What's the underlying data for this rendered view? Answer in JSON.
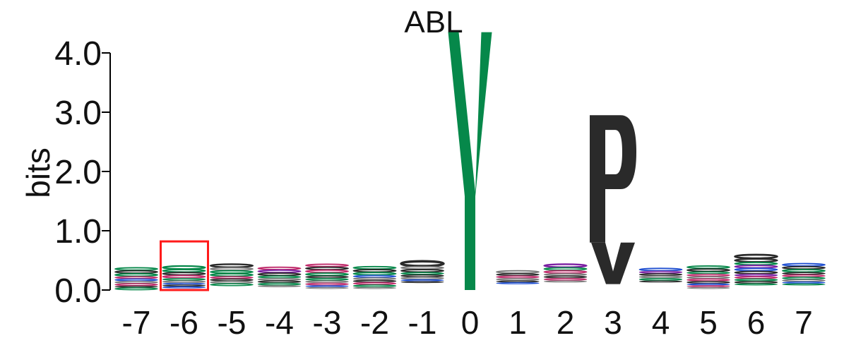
{
  "chart_data": {
    "type": "sequence-logo",
    "title": "ABL",
    "ylabel": "bits",
    "ylim": [
      0,
      4.35
    ],
    "yticks": [
      "0.0",
      "1.0",
      "2.0",
      "3.0",
      "4.0"
    ],
    "xticks": [
      "-7",
      "-6",
      "-5",
      "-4",
      "-3",
      "-2",
      "-1",
      "0",
      "1",
      "2",
      "3",
      "4",
      "5",
      "6",
      "7"
    ],
    "highlight": {
      "position": "-6",
      "ymax": 0.82,
      "color": "#ff1a1a"
    },
    "colors": {
      "green": "#06884a",
      "dark": "#2a2a2a",
      "pink": "#c02b6b",
      "blue": "#1f4fd1",
      "purple": "#7b1fa2",
      "gray": "#7a7a7a"
    },
    "positions": [
      {
        "pos": "-7",
        "total": 0.38,
        "letters": [
          {
            "c": "green",
            "h": 0.05
          },
          {
            "c": "dark",
            "h": 0.05
          },
          {
            "c": "green",
            "h": 0.05
          },
          {
            "c": "pink",
            "h": 0.04
          },
          {
            "c": "blue",
            "h": 0.04
          },
          {
            "c": "gray",
            "h": 0.04
          },
          {
            "c": "pink",
            "h": 0.04
          },
          {
            "c": "dark",
            "h": 0.03
          },
          {
            "c": "green",
            "h": 0.04
          }
        ]
      },
      {
        "pos": "-6",
        "total": 0.41,
        "letters": [
          {
            "c": "green",
            "h": 0.06
          },
          {
            "c": "green",
            "h": 0.05
          },
          {
            "c": "dark",
            "h": 0.05
          },
          {
            "c": "pink",
            "h": 0.05
          },
          {
            "c": "green",
            "h": 0.04
          },
          {
            "c": "gray",
            "h": 0.04
          },
          {
            "c": "blue",
            "h": 0.03
          },
          {
            "c": "dark",
            "h": 0.03
          },
          {
            "c": "blue",
            "h": 0.03
          }
        ]
      },
      {
        "pos": "-5",
        "total": 0.44,
        "letters": [
          {
            "c": "dark",
            "h": 0.06
          },
          {
            "c": "gray",
            "h": 0.05
          },
          {
            "c": "green",
            "h": 0.05
          },
          {
            "c": "green",
            "h": 0.05
          },
          {
            "c": "pink",
            "h": 0.04
          },
          {
            "c": "dark",
            "h": 0.04
          },
          {
            "c": "gray",
            "h": 0.04
          },
          {
            "c": "green",
            "h": 0.04
          }
        ]
      },
      {
        "pos": "-4",
        "total": 0.39,
        "letters": [
          {
            "c": "pink",
            "h": 0.05
          },
          {
            "c": "purple",
            "h": 0.05
          },
          {
            "c": "dark",
            "h": 0.05
          },
          {
            "c": "green",
            "h": 0.04
          },
          {
            "c": "gray",
            "h": 0.04
          },
          {
            "c": "dark",
            "h": 0.04
          },
          {
            "c": "green",
            "h": 0.04
          },
          {
            "c": "gray",
            "h": 0.03
          }
        ]
      },
      {
        "pos": "-3",
        "total": 0.44,
        "letters": [
          {
            "c": "pink",
            "h": 0.05
          },
          {
            "c": "dark",
            "h": 0.05
          },
          {
            "c": "pink",
            "h": 0.05
          },
          {
            "c": "green",
            "h": 0.05
          },
          {
            "c": "dark",
            "h": 0.04
          },
          {
            "c": "green",
            "h": 0.04
          },
          {
            "c": "gray",
            "h": 0.04
          },
          {
            "c": "pink",
            "h": 0.04
          },
          {
            "c": "blue",
            "h": 0.03
          },
          {
            "c": "gray",
            "h": 0.03
          }
        ]
      },
      {
        "pos": "-2",
        "total": 0.4,
        "letters": [
          {
            "c": "green",
            "h": 0.05
          },
          {
            "c": "dark",
            "h": 0.05
          },
          {
            "c": "green",
            "h": 0.05
          },
          {
            "c": "blue",
            "h": 0.04
          },
          {
            "c": "gray",
            "h": 0.04
          },
          {
            "c": "dark",
            "h": 0.04
          },
          {
            "c": "pink",
            "h": 0.04
          },
          {
            "c": "green",
            "h": 0.04
          },
          {
            "c": "gray",
            "h": 0.03
          }
        ]
      },
      {
        "pos": "-1",
        "total": 0.49,
        "letters": [
          {
            "c": "dark",
            "h": 0.09
          },
          {
            "c": "gray",
            "h": 0.05
          },
          {
            "c": "dark",
            "h": 0.05
          },
          {
            "c": "green",
            "h": 0.04
          },
          {
            "c": "dark",
            "h": 0.04
          },
          {
            "c": "gray",
            "h": 0.04
          },
          {
            "c": "blue",
            "h": 0.03
          },
          {
            "c": "dark",
            "h": 0.03
          }
        ]
      },
      {
        "pos": "0",
        "total": 4.35,
        "letters": [
          {
            "c": "green",
            "h": 4.35,
            "glyph": "Y"
          }
        ]
      },
      {
        "pos": "1",
        "total": 0.33,
        "letters": [
          {
            "c": "gray",
            "h": 0.05
          },
          {
            "c": "dark",
            "h": 0.04
          },
          {
            "c": "pink",
            "h": 0.04
          },
          {
            "c": "gray",
            "h": 0.04
          },
          {
            "c": "dark",
            "h": 0.03
          },
          {
            "c": "blue",
            "h": 0.03
          }
        ]
      },
      {
        "pos": "2",
        "total": 0.44,
        "letters": [
          {
            "c": "purple",
            "h": 0.06
          },
          {
            "c": "green",
            "h": 0.05
          },
          {
            "c": "pink",
            "h": 0.05
          },
          {
            "c": "gray",
            "h": 0.04
          },
          {
            "c": "dark",
            "h": 0.04
          },
          {
            "c": "pink",
            "h": 0.04
          },
          {
            "c": "gray",
            "h": 0.03
          }
        ]
      },
      {
        "pos": "3",
        "total": 2.95,
        "letters": [
          {
            "c": "dark",
            "h": 2.15,
            "glyph": "P"
          },
          {
            "c": "dark",
            "h": 0.7,
            "glyph": "V"
          }
        ]
      },
      {
        "pos": "4",
        "total": 0.37,
        "letters": [
          {
            "c": "blue",
            "h": 0.05
          },
          {
            "c": "purple",
            "h": 0.04
          },
          {
            "c": "dark",
            "h": 0.04
          },
          {
            "c": "gray",
            "h": 0.04
          },
          {
            "c": "green",
            "h": 0.04
          },
          {
            "c": "dark",
            "h": 0.03
          }
        ]
      },
      {
        "pos": "5",
        "total": 0.41,
        "letters": [
          {
            "c": "green",
            "h": 0.05
          },
          {
            "c": "dark",
            "h": 0.05
          },
          {
            "c": "green",
            "h": 0.04
          },
          {
            "c": "pink",
            "h": 0.04
          },
          {
            "c": "gray",
            "h": 0.04
          },
          {
            "c": "pink",
            "h": 0.04
          },
          {
            "c": "dark",
            "h": 0.04
          },
          {
            "c": "blue",
            "h": 0.03
          },
          {
            "c": "pink",
            "h": 0.03
          },
          {
            "c": "gray",
            "h": 0.03
          }
        ]
      },
      {
        "pos": "6",
        "total": 0.6,
        "letters": [
          {
            "c": "dark",
            "h": 0.07
          },
          {
            "c": "dark",
            "h": 0.06
          },
          {
            "c": "green",
            "h": 0.05
          },
          {
            "c": "purple",
            "h": 0.05
          },
          {
            "c": "blue",
            "h": 0.05
          },
          {
            "c": "dark",
            "h": 0.05
          },
          {
            "c": "purple",
            "h": 0.04
          },
          {
            "c": "pink",
            "h": 0.04
          },
          {
            "c": "green",
            "h": 0.04
          },
          {
            "c": "dark",
            "h": 0.04
          },
          {
            "c": "green",
            "h": 0.03
          }
        ]
      },
      {
        "pos": "7",
        "total": 0.45,
        "letters": [
          {
            "c": "blue",
            "h": 0.05
          },
          {
            "c": "dark",
            "h": 0.05
          },
          {
            "c": "green",
            "h": 0.05
          },
          {
            "c": "dark",
            "h": 0.04
          },
          {
            "c": "pink",
            "h": 0.04
          },
          {
            "c": "green",
            "h": 0.04
          },
          {
            "c": "gray",
            "h": 0.04
          },
          {
            "c": "blue",
            "h": 0.03
          },
          {
            "c": "green",
            "h": 0.03
          }
        ]
      }
    ]
  }
}
